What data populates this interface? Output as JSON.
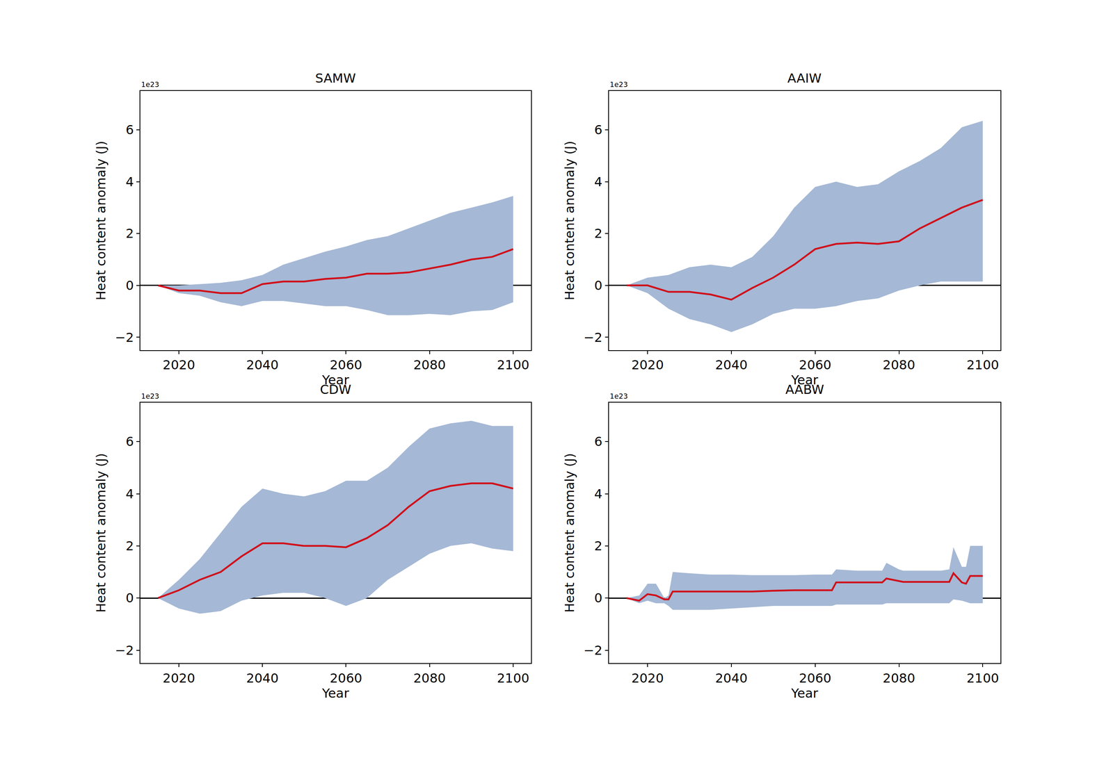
{
  "chart_data": [
    {
      "type": "line",
      "title": "SAMW",
      "x_label": "Year",
      "y_label": "Heat content anomaly (J)",
      "annotations": [
        "1e23"
      ],
      "x": [
        2015,
        2020,
        2025,
        2030,
        2035,
        2040,
        2045,
        2050,
        2055,
        2060,
        2065,
        2070,
        2075,
        2080,
        2085,
        2090,
        2095,
        2100
      ],
      "series": [
        {
          "color": "#d0111b",
          "values": [
            0,
            -0.2,
            -0.2,
            -0.3,
            -0.3,
            0.05,
            0.15,
            0.15,
            0.25,
            0.3,
            0.45,
            0.45,
            0.5,
            0.65,
            0.8,
            1.0,
            1.1,
            1.4
          ],
          "lower": [
            0,
            -0.3,
            -0.4,
            -0.65,
            -0.8,
            -0.6,
            -0.6,
            -0.7,
            -0.8,
            -0.8,
            -0.95,
            -1.15,
            -1.15,
            -1.1,
            -1.15,
            -1.0,
            -0.95,
            -0.65
          ],
          "upper": [
            0,
            0,
            0.05,
            0.1,
            0.2,
            0.4,
            0.8,
            1.05,
            1.3,
            1.5,
            1.75,
            1.9,
            2.2,
            2.5,
            2.8,
            3.0,
            3.2,
            3.45
          ]
        }
      ],
      "xlim": [
        2010.75,
        2104.25
      ],
      "xticks": [
        2020,
        2040,
        2060,
        2080,
        2100
      ],
      "ylim": [
        -2.5,
        7.5
      ],
      "yticks": [
        -2,
        0,
        2,
        4,
        6
      ],
      "grid": false
    },
    {
      "type": "line",
      "title": "AAIW",
      "x_label": "Year",
      "y_label": "Heat content anomaly (J)",
      "annotations": [
        "1e23"
      ],
      "x": [
        2015,
        2020,
        2025,
        2030,
        2035,
        2040,
        2045,
        2050,
        2055,
        2060,
        2065,
        2070,
        2075,
        2080,
        2085,
        2090,
        2095,
        2100
      ],
      "series": [
        {
          "color": "#d0111b",
          "values": [
            0,
            0.0,
            -0.25,
            -0.25,
            -0.35,
            -0.55,
            -0.1,
            0.3,
            0.8,
            1.4,
            1.6,
            1.65,
            1.6,
            1.7,
            2.2,
            2.6,
            3.0,
            3.3
          ],
          "lower": [
            0,
            -0.3,
            -0.9,
            -1.3,
            -1.5,
            -1.8,
            -1.5,
            -1.1,
            -0.9,
            -0.9,
            -0.8,
            -0.6,
            -0.5,
            -0.2,
            0.0,
            0.15,
            0.15,
            0.15
          ],
          "upper": [
            0,
            0.3,
            0.4,
            0.7,
            0.8,
            0.7,
            1.1,
            1.9,
            3.0,
            3.8,
            4.0,
            3.8,
            3.9,
            4.4,
            4.8,
            5.3,
            6.1,
            6.35
          ]
        }
      ],
      "xlim": [
        2010.75,
        2104.25
      ],
      "xticks": [
        2020,
        2040,
        2060,
        2080,
        2100
      ],
      "ylim": [
        -2.5,
        7.5
      ],
      "yticks": [
        -2,
        0,
        2,
        4,
        6
      ],
      "grid": false
    },
    {
      "type": "line",
      "title": "CDW",
      "x_label": "Year",
      "y_label": "Heat content anomaly (J)",
      "annotations": [
        "1e23"
      ],
      "x": [
        2015,
        2020,
        2025,
        2030,
        2035,
        2040,
        2045,
        2050,
        2055,
        2060,
        2065,
        2070,
        2075,
        2080,
        2085,
        2090,
        2095,
        2100
      ],
      "series": [
        {
          "color": "#d0111b",
          "values": [
            0,
            0.3,
            0.7,
            1.0,
            1.6,
            2.1,
            2.1,
            2.0,
            2.0,
            1.95,
            2.3,
            2.8,
            3.5,
            4.1,
            4.3,
            4.4,
            4.4,
            4.2
          ],
          "lower": [
            0,
            -0.4,
            -0.6,
            -0.5,
            -0.1,
            0.1,
            0.2,
            0.2,
            0.0,
            -0.3,
            0.0,
            0.7,
            1.2,
            1.7,
            2.0,
            2.1,
            1.9,
            1.8
          ],
          "upper": [
            0,
            0.7,
            1.5,
            2.5,
            3.5,
            4.2,
            4.0,
            3.9,
            4.1,
            4.5,
            4.5,
            5.0,
            5.8,
            6.5,
            6.7,
            6.8,
            6.6,
            6.6
          ]
        }
      ],
      "xlim": [
        2010.75,
        2104.25
      ],
      "xticks": [
        2020,
        2040,
        2060,
        2080,
        2100
      ],
      "ylim": [
        -2.5,
        7.5
      ],
      "yticks": [
        -2,
        0,
        2,
        4,
        6
      ],
      "grid": false
    },
    {
      "type": "line",
      "title": "AABW",
      "x_label": "Year",
      "y_label": "Heat content anomaly (J)",
      "annotations": [
        "1e23"
      ],
      "x": [
        2015,
        2018,
        2020,
        2022,
        2024,
        2025,
        2026,
        2030,
        2035,
        2040,
        2045,
        2050,
        2055,
        2060,
        2064,
        2065,
        2070,
        2076,
        2077,
        2080,
        2081,
        2085,
        2090,
        2092,
        2093,
        2095,
        2096,
        2097,
        2100
      ],
      "series": [
        {
          "color": "#d0111b",
          "values": [
            0,
            -0.1,
            0.15,
            0.1,
            -0.05,
            -0.05,
            0.25,
            0.25,
            0.25,
            0.25,
            0.25,
            0.28,
            0.3,
            0.3,
            0.3,
            0.6,
            0.6,
            0.6,
            0.75,
            0.65,
            0.62,
            0.62,
            0.62,
            0.62,
            0.95,
            0.6,
            0.55,
            0.85,
            0.85
          ],
          "lower": [
            0,
            -0.2,
            -0.1,
            -0.2,
            -0.2,
            -0.3,
            -0.45,
            -0.45,
            -0.45,
            -0.4,
            -0.35,
            -0.3,
            -0.3,
            -0.3,
            -0.3,
            -0.25,
            -0.25,
            -0.25,
            -0.2,
            -0.2,
            -0.2,
            -0.2,
            -0.2,
            -0.2,
            -0.05,
            -0.1,
            -0.15,
            -0.2,
            -0.2
          ],
          "upper": [
            0,
            0.1,
            0.55,
            0.55,
            0.0,
            0.1,
            1.0,
            0.95,
            0.9,
            0.9,
            0.88,
            0.88,
            0.88,
            0.9,
            0.9,
            1.1,
            1.05,
            1.05,
            1.35,
            1.1,
            1.05,
            1.05,
            1.05,
            1.1,
            1.95,
            1.2,
            1.2,
            2.0,
            2.0
          ]
        }
      ],
      "xlim": [
        2010.75,
        2104.25
      ],
      "xticks": [
        2020,
        2040,
        2060,
        2080,
        2100
      ],
      "ylim": [
        -2.5,
        7.5
      ],
      "yticks": [
        -2,
        0,
        2,
        4,
        6
      ],
      "grid": false
    }
  ]
}
